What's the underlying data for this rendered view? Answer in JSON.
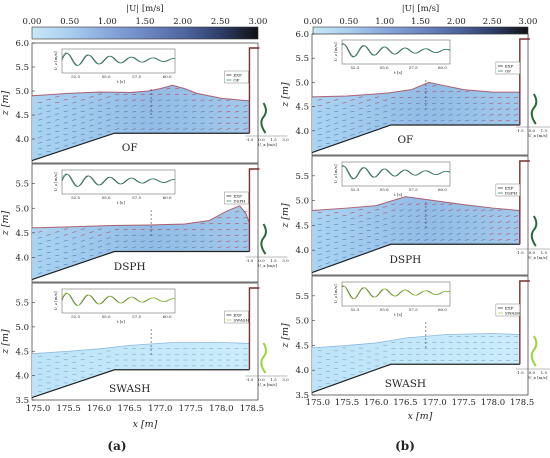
{
  "colorbar": {
    "label": "|U| [m/s]",
    "ticks": [
      "0.00",
      "0.50",
      "1.00",
      "1.50",
      "2.00",
      "2.50",
      "3.00"
    ],
    "vmin": 0,
    "vmax": 3,
    "colors": [
      "#c8e8f8",
      "#a9cdee",
      "#8aa9dc",
      "#6d88c4",
      "#4f66a0",
      "#2f3f6a",
      "#121214"
    ]
  },
  "chart_data": [
    {
      "type": "composite",
      "caption": "(a)",
      "xlabel": "x [m]",
      "ylabel": "z [m]",
      "xticks": [
        "175.0",
        "175.5",
        "176.0",
        "176.5",
        "177.0",
        "177.5",
        "178.0",
        "178.5"
      ],
      "xlim": [
        174.9,
        178.6
      ],
      "panels": [
        {
          "name": "OF",
          "yticks": [
            "4.0",
            "4.5",
            "5.0",
            "5.5",
            "6.0"
          ],
          "ylim": [
            3.5,
            6.0
          ],
          "inset_xlabel": "t [s]",
          "inset_ylabel": "U_z [m/s]",
          "inset_xticks": [
            "52.5",
            "55.0",
            "57.5",
            "60.0"
          ],
          "legend": [
            "EXP",
            "OF"
          ],
          "profile_label": "U_x [m/s]",
          "profile_ticks": [
            "-1.5",
            "0.0",
            "1.5",
            "3.0"
          ]
        },
        {
          "name": "DSPH",
          "yticks": [
            "4.0",
            "4.5",
            "5.0",
            "5.5"
          ],
          "ylim": [
            3.5,
            5.9
          ],
          "inset_xlabel": "t [s]",
          "inset_ylabel": "U_z [m/s]",
          "inset_xticks": [
            "52.5",
            "55.0",
            "57.5",
            "60.0"
          ],
          "legend": [
            "EXP",
            "DSPH"
          ],
          "profile_label": "U_x [m/s]",
          "profile_ticks": [
            "-1.5",
            "0.0",
            "1.5",
            "3.0"
          ]
        },
        {
          "name": "SWASH",
          "yticks": [
            "3.5",
            "4.0",
            "4.5",
            "5.0",
            "5.5"
          ],
          "ylim": [
            3.5,
            5.9
          ],
          "inset_xlabel": "t [s]",
          "inset_ylabel": "U_z [m/s]",
          "inset_xticks": [
            "52.5",
            "55.0",
            "57.5",
            "60.0"
          ],
          "legend": [
            "EXP",
            "SWASH"
          ],
          "profile_label": "U_x [m/s]",
          "profile_ticks": [
            "-1.5",
            "0.0",
            "1.5",
            "3.0"
          ]
        }
      ]
    },
    {
      "type": "composite",
      "caption": "(b)",
      "xlabel": "x [m]",
      "ylabel": "z [m]",
      "xticks": [
        "175.0",
        "175.5",
        "176.0",
        "176.5",
        "177.0",
        "177.5",
        "178.0",
        "178.5"
      ],
      "xlim": [
        174.9,
        178.6
      ],
      "panels": [
        {
          "name": "OF",
          "yticks": [
            "4.0",
            "4.5",
            "5.0",
            "5.5",
            "6.0"
          ],
          "ylim": [
            3.5,
            6.0
          ],
          "inset_xlabel": "t [s]",
          "inset_ylabel": "U_z [m/s]",
          "inset_xticks": [
            "52.5",
            "55.0",
            "57.5",
            "60.0"
          ],
          "legend": [
            "EXP",
            "OF"
          ],
          "profile_label": "U_x [m/s]",
          "profile_ticks": [
            "-1.5",
            "0.0",
            "1.5",
            "3.0"
          ]
        },
        {
          "name": "DSPH",
          "yticks": [
            "4.0",
            "4.5",
            "5.0",
            "5.5"
          ],
          "ylim": [
            3.5,
            5.9
          ],
          "inset_xlabel": "t [s]",
          "inset_ylabel": "U_z [m/s]",
          "inset_xticks": [
            "52.5",
            "55.0",
            "57.5",
            "60.0"
          ],
          "legend": [
            "EXP",
            "DSPH"
          ],
          "profile_label": "U_x [m/s]",
          "profile_ticks": [
            "-1.5",
            "0.0",
            "1.5",
            "3.0"
          ]
        },
        {
          "name": "SWASH",
          "yticks": [
            "3.5",
            "4.0",
            "4.5",
            "5.0",
            "5.5"
          ],
          "ylim": [
            3.5,
            5.9
          ],
          "inset_xlabel": "t [s]",
          "inset_ylabel": "U_z [m/s]",
          "inset_xticks": [
            "52.5",
            "55.0",
            "57.5",
            "60.0"
          ],
          "legend": [
            "EXP",
            "SWASH"
          ],
          "profile_label": "U_x [m/s]",
          "profile_ticks": [
            "-1.5",
            "0.0",
            "1.5",
            "3.0"
          ]
        }
      ]
    }
  ]
}
